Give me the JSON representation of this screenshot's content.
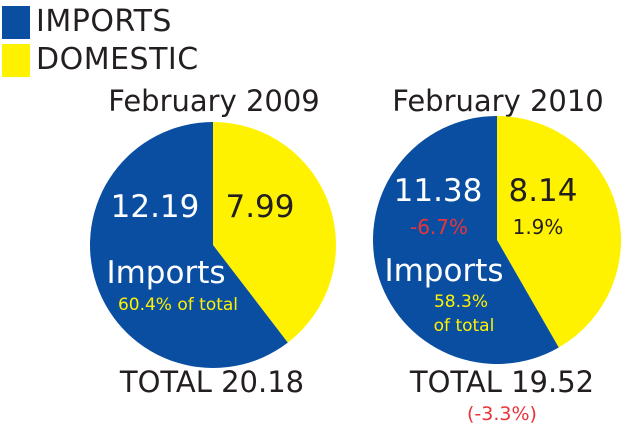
{
  "legend": [
    {
      "label": "IMPORTS",
      "color": "#0a4ea1"
    },
    {
      "label": "DOMESTIC",
      "color": "#fff200"
    }
  ],
  "chart_data": [
    {
      "type": "pie",
      "title": "February 2009",
      "categories": [
        "Imports",
        "Domestic"
      ],
      "values": [
        12.19,
        7.99
      ],
      "colors": [
        "#0a4ea1",
        "#fff200"
      ],
      "value_labels": [
        "12.19",
        "7.99"
      ],
      "imports_label": "Imports",
      "imports_share_lines": [
        "60.4% of total"
      ],
      "total_label": "TOTAL 20.18"
    },
    {
      "type": "pie",
      "title": "February 2010",
      "categories": [
        "Imports",
        "Domestic"
      ],
      "values": [
        11.38,
        8.14
      ],
      "colors": [
        "#0a4ea1",
        "#fff200"
      ],
      "value_labels": [
        "11.38",
        "8.14"
      ],
      "imports_change": "-6.7%",
      "domestic_change": "1.9%",
      "imports_label": "Imports",
      "imports_share_lines": [
        "58.3%",
        "of total"
      ],
      "total_label": "TOTAL 19.52",
      "total_change": "(-3.3%)"
    }
  ]
}
